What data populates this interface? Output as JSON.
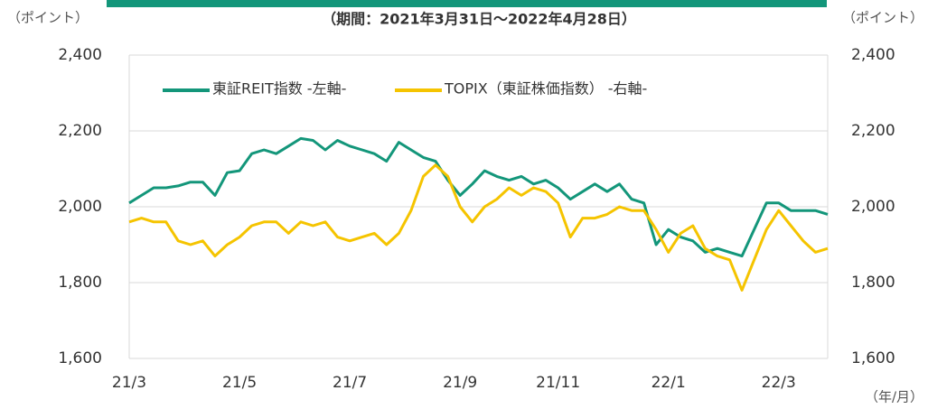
{
  "chart_data": {
    "type": "line",
    "subtitle": "（期間：2021年3月31日～2022年4月28日）",
    "y_label": "（ポイント）",
    "y2_label": "（ポイント）",
    "x_label": "（年/月）",
    "categories": [
      "21/3",
      null,
      null,
      null,
      null,
      null,
      null,
      null,
      null,
      "21/5",
      null,
      null,
      null,
      null,
      null,
      null,
      null,
      null,
      "21/7",
      null,
      null,
      null,
      null,
      null,
      null,
      null,
      null,
      "21/9",
      null,
      null,
      null,
      null,
      null,
      null,
      null,
      "21/11",
      null,
      null,
      null,
      null,
      null,
      null,
      null,
      null,
      "22/1",
      null,
      null,
      null,
      null,
      null,
      null,
      null,
      null,
      "22/3",
      null,
      null,
      null,
      null
    ],
    "series": [
      {
        "name": "東証REIT指数 -左軸-",
        "color": "#13967a",
        "axis": "y",
        "values": [
          2010,
          2030,
          2050,
          2050,
          2055,
          2065,
          2065,
          2030,
          2090,
          2095,
          2140,
          2150,
          2140,
          2160,
          2180,
          2175,
          2150,
          2175,
          2160,
          2150,
          2140,
          2120,
          2170,
          2150,
          2130,
          2120,
          2070,
          2030,
          2060,
          2095,
          2080,
          2070,
          2080,
          2060,
          2070,
          2050,
          2020,
          2040,
          2060,
          2040,
          2060,
          2020,
          2010,
          1900,
          1940,
          1920,
          1910,
          1880,
          1890,
          1880,
          1870,
          1940,
          2010,
          2010,
          1990,
          1990,
          1990,
          1980
        ]
      },
      {
        "name": "TOPIX（東証株価指数） -右軸-",
        "color": "#f5c400",
        "axis": "y2",
        "values": [
          1960,
          1970,
          1960,
          1960,
          1910,
          1900,
          1910,
          1870,
          1900,
          1920,
          1950,
          1960,
          1960,
          1930,
          1960,
          1950,
          1960,
          1920,
          1910,
          1920,
          1930,
          1900,
          1930,
          1990,
          2080,
          2110,
          2080,
          2000,
          1960,
          2000,
          2020,
          2050,
          2030,
          2050,
          2040,
          2010,
          1920,
          1970,
          1970,
          1980,
          2000,
          1990,
          1990,
          1940,
          1880,
          1930,
          1950,
          1890,
          1870,
          1860,
          1780,
          1860,
          1940,
          1990,
          1950,
          1910,
          1880,
          1890
        ]
      }
    ],
    "ylim": [
      1600,
      2400
    ],
    "yticks": [
      {
        "value": 1600,
        "label": "1,600"
      },
      {
        "value": 1800,
        "label": "1,800"
      },
      {
        "value": 2000,
        "label": "2,000"
      },
      {
        "value": 2200,
        "label": "2,200"
      },
      {
        "value": 2400,
        "label": "2,400"
      }
    ],
    "y2lim": [
      1600,
      2400
    ],
    "y2ticks": [
      {
        "value": 1600,
        "label": "1,600"
      },
      {
        "value": 1800,
        "label": "1,800"
      },
      {
        "value": 2000,
        "label": "2,000"
      },
      {
        "value": 2200,
        "label": "2,200"
      },
      {
        "value": 2400,
        "label": "2,400"
      }
    ],
    "grid": true,
    "legend": "top"
  }
}
